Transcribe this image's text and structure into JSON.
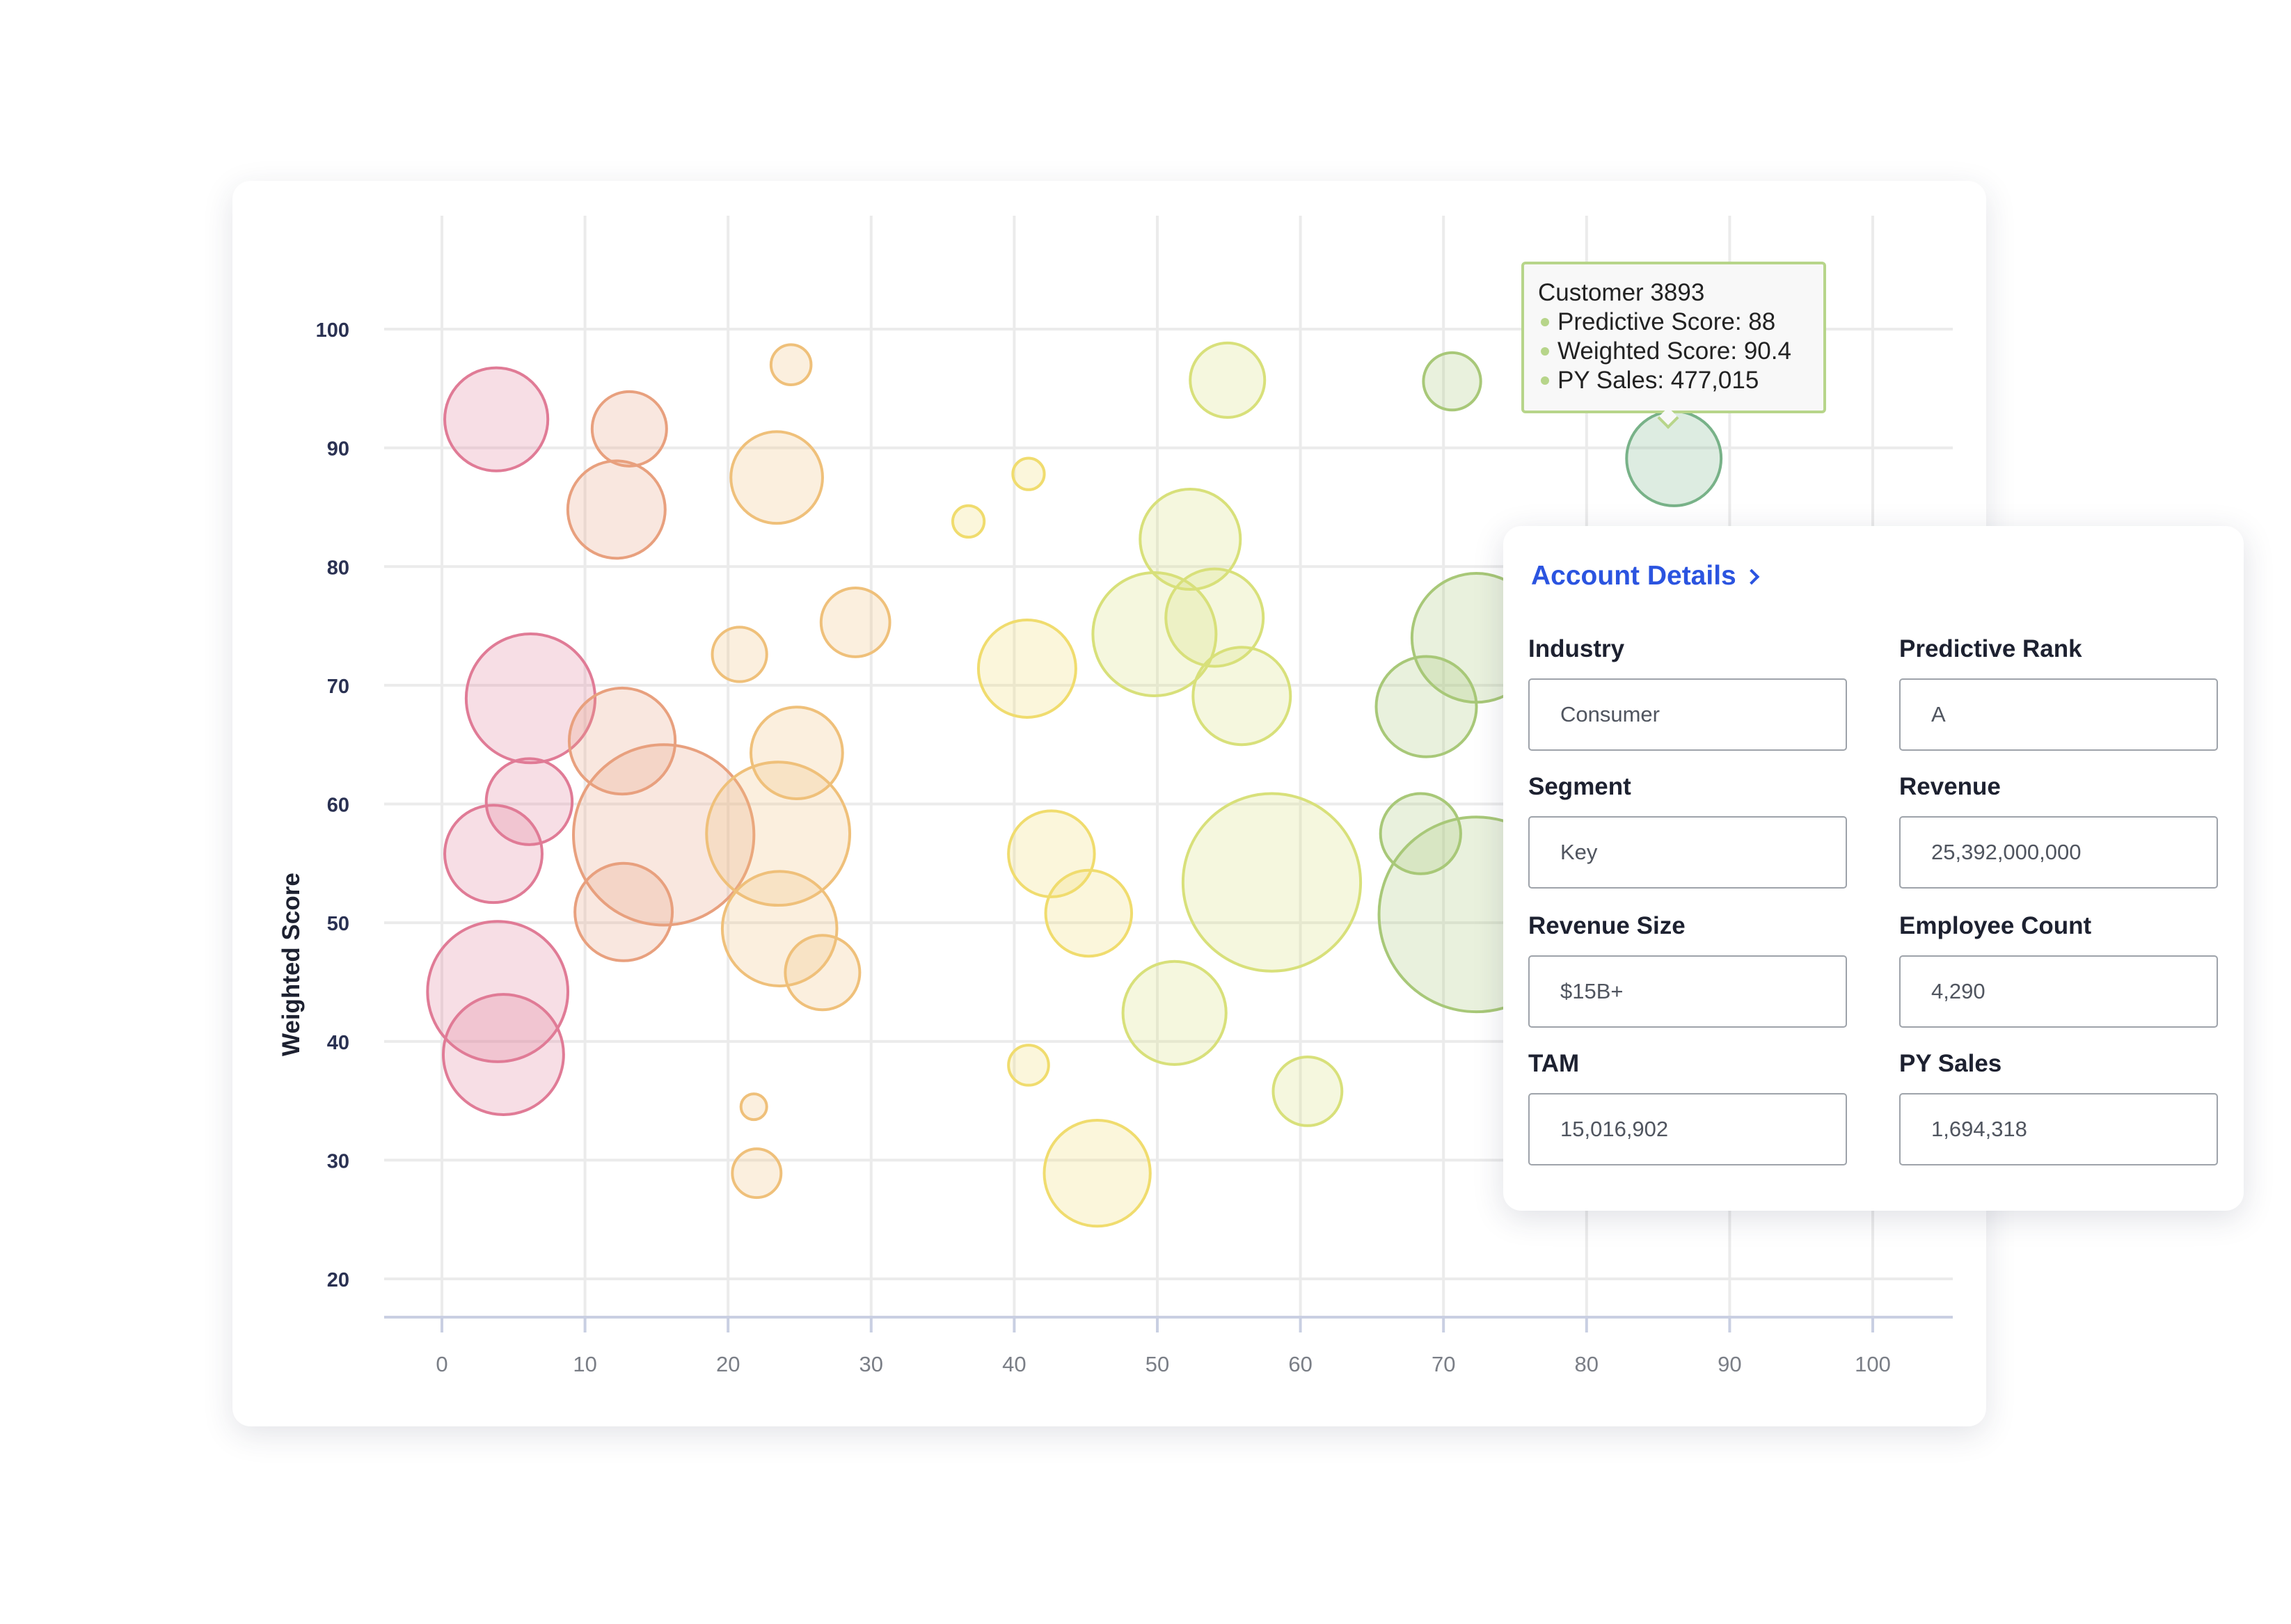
{
  "chart_data": {
    "type": "scatter",
    "ylabel": "Weighted Score",
    "xlabel": "",
    "xlim": [
      0,
      100
    ],
    "ylim": [
      20,
      100
    ],
    "xticks": [
      "0",
      "10",
      "20",
      "30",
      "40",
      "50",
      "60",
      "70",
      "80",
      "90",
      "100"
    ],
    "yticks": [
      "20",
      "30",
      "40",
      "50",
      "60",
      "70",
      "80",
      "90",
      "100"
    ],
    "size_encoding": "PY Sales",
    "grid": true,
    "colors": {
      "red": "#e07b96",
      "orange": "#e8a07e",
      "peach": "#efc07a",
      "yellow": "#f0dc6e",
      "lime": "#d8e07a",
      "green": "#a8c878",
      "darkgreen": "#78b288"
    },
    "points": [
      {
        "x": 3.8,
        "y": 92.4,
        "r": 36,
        "color": "red"
      },
      {
        "x": 6.2,
        "y": 68.9,
        "r": 45,
        "color": "red"
      },
      {
        "x": 6.1,
        "y": 60.2,
        "r": 30,
        "color": "red"
      },
      {
        "x": 3.6,
        "y": 55.8,
        "r": 34,
        "color": "red"
      },
      {
        "x": 3.9,
        "y": 44.2,
        "r": 49,
        "color": "red"
      },
      {
        "x": 4.3,
        "y": 38.9,
        "r": 42,
        "color": "red"
      },
      {
        "x": 13.1,
        "y": 91.6,
        "r": 26,
        "color": "orange"
      },
      {
        "x": 12.2,
        "y": 84.8,
        "r": 34,
        "color": "orange"
      },
      {
        "x": 12.6,
        "y": 65.3,
        "r": 37,
        "color": "orange"
      },
      {
        "x": 15.5,
        "y": 57.4,
        "r": 63,
        "color": "orange"
      },
      {
        "x": 12.7,
        "y": 50.9,
        "r": 34,
        "color": "orange"
      },
      {
        "x": 24.4,
        "y": 97.0,
        "r": 14,
        "color": "peach"
      },
      {
        "x": 23.4,
        "y": 87.5,
        "r": 32,
        "color": "peach"
      },
      {
        "x": 28.9,
        "y": 75.3,
        "r": 24,
        "color": "peach"
      },
      {
        "x": 20.8,
        "y": 72.6,
        "r": 19,
        "color": "peach"
      },
      {
        "x": 24.8,
        "y": 64.3,
        "r": 32,
        "color": "peach"
      },
      {
        "x": 23.5,
        "y": 57.5,
        "r": 50,
        "color": "peach"
      },
      {
        "x": 23.6,
        "y": 49.5,
        "r": 40,
        "color": "peach"
      },
      {
        "x": 26.6,
        "y": 45.8,
        "r": 26,
        "color": "peach"
      },
      {
        "x": 21.8,
        "y": 34.5,
        "r": 9,
        "color": "peach"
      },
      {
        "x": 22.0,
        "y": 28.9,
        "r": 17,
        "color": "peach"
      },
      {
        "x": 41.0,
        "y": 87.8,
        "r": 11,
        "color": "yellow"
      },
      {
        "x": 36.8,
        "y": 83.8,
        "r": 11,
        "color": "yellow"
      },
      {
        "x": 40.9,
        "y": 71.4,
        "r": 34,
        "color": "yellow"
      },
      {
        "x": 42.6,
        "y": 55.8,
        "r": 30,
        "color": "yellow"
      },
      {
        "x": 45.2,
        "y": 50.8,
        "r": 30,
        "color": "yellow"
      },
      {
        "x": 41.0,
        "y": 38.0,
        "r": 14,
        "color": "yellow"
      },
      {
        "x": 45.8,
        "y": 28.9,
        "r": 37,
        "color": "yellow"
      },
      {
        "x": 54.9,
        "y": 95.7,
        "r": 26,
        "color": "lime"
      },
      {
        "x": 52.3,
        "y": 82.3,
        "r": 35,
        "color": "lime"
      },
      {
        "x": 49.8,
        "y": 74.3,
        "r": 43,
        "color": "lime"
      },
      {
        "x": 54.0,
        "y": 75.7,
        "r": 34,
        "color": "lime"
      },
      {
        "x": 55.9,
        "y": 69.1,
        "r": 34,
        "color": "lime"
      },
      {
        "x": 58.0,
        "y": 53.4,
        "r": 62,
        "color": "lime"
      },
      {
        "x": 51.2,
        "y": 42.4,
        "r": 36,
        "color": "lime"
      },
      {
        "x": 60.5,
        "y": 35.8,
        "r": 24,
        "color": "lime"
      },
      {
        "x": 70.6,
        "y": 95.6,
        "r": 20,
        "color": "green"
      },
      {
        "x": 72.3,
        "y": 74.0,
        "r": 45,
        "color": "green"
      },
      {
        "x": 68.8,
        "y": 68.2,
        "r": 35,
        "color": "green"
      },
      {
        "x": 68.4,
        "y": 57.5,
        "r": 28,
        "color": "green"
      },
      {
        "x": 72.3,
        "y": 50.7,
        "r": 68,
        "color": "green"
      },
      {
        "x": 86.1,
        "y": 89.1,
        "r": 33,
        "color": "darkgreen"
      }
    ]
  },
  "tooltip": {
    "title": "Customer 3893",
    "predictive_score": "Predictive Score: 88",
    "weighted_score": "Weighted Score: 90.4",
    "py_sales": "PY Sales: 477,015"
  },
  "panel": {
    "title": "Account Details",
    "industry_label": "Industry",
    "industry_value": "Consumer",
    "predictive_rank_label": "Predictive Rank",
    "predictive_rank_value": "A",
    "segment_label": "Segment",
    "segment_value": "Key",
    "revenue_label": "Revenue",
    "revenue_value": "25,392,000,000",
    "revenue_size_label": "Revenue Size",
    "revenue_size_value": "$15B+",
    "employee_count_label": "Employee Count",
    "employee_count_value": "4,290",
    "tam_label": "TAM",
    "tam_value": "15,016,902",
    "py_sales_label": "PY Sales",
    "py_sales_value": "1,694,318"
  }
}
